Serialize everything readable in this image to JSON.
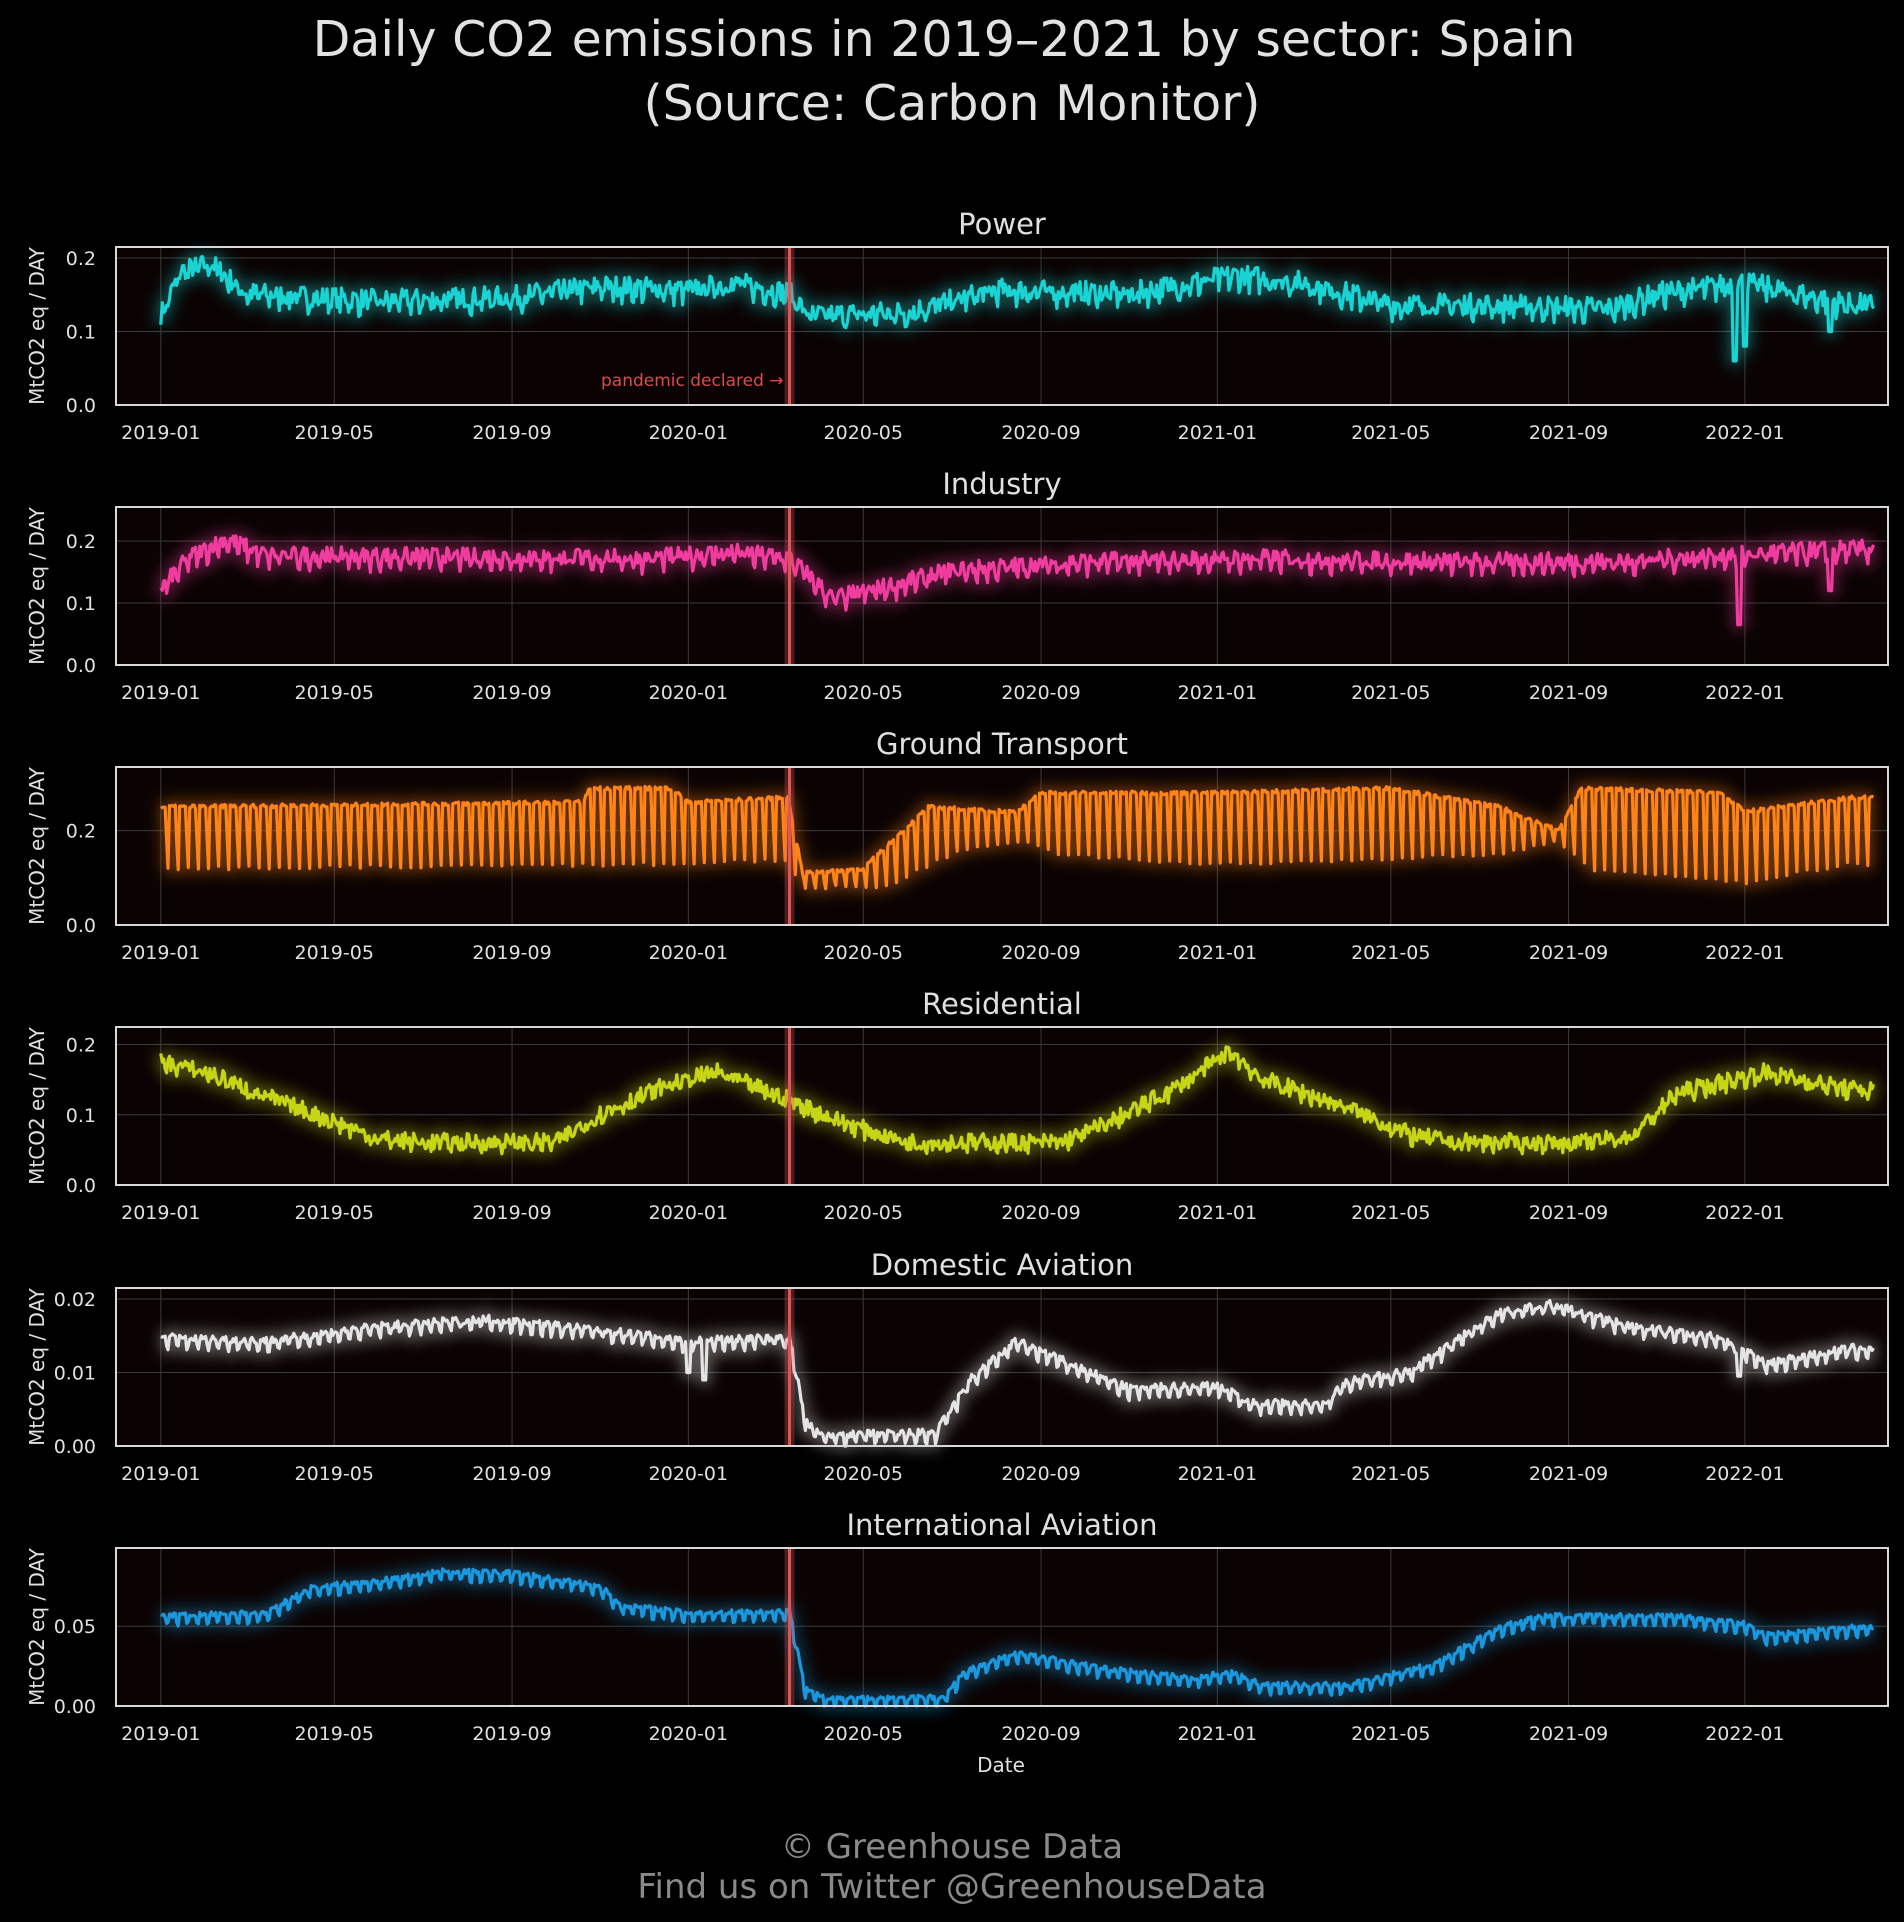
{
  "title_line1": "Daily CO2 emissions in 2019–2021 by sector: Spain",
  "title_line2": "(Source: Carbon Monitor)",
  "footer_line1": "© Greenhouse Data",
  "footer_line2": "Find us on Twitter @GreenhouseData",
  "colors": {
    "background": "#000000",
    "plot_background": "#0b0303",
    "grid": "#3a3a3a",
    "frame": "#d8d8d8",
    "pandemic_line": "#e05555"
  },
  "chart_data": {
    "type": "line",
    "x_axis": {
      "label": "Date",
      "range": [
        "2018-12-01",
        "2022-04-10"
      ],
      "ticks": [
        "2019-01",
        "2019-05",
        "2019-09",
        "2020-01",
        "2020-05",
        "2020-09",
        "2021-01",
        "2021-05",
        "2021-09",
        "2022-01"
      ]
    },
    "ylabel": "MtCO2 eq / DAY",
    "annotation": {
      "text": "pandemic declared →",
      "date": "2020-03-11"
    },
    "panels": [
      {
        "title": "Power",
        "color": "#1ad4d4",
        "ylim": [
          0,
          0.215
        ],
        "yticks": [
          "0.0",
          "0.1",
          "0.2"
        ],
        "ytick_values": [
          0,
          0.1,
          0.2
        ],
        "seasonal_weekly": false,
        "weekday_swing": 0.008,
        "noise": 0.014,
        "dips": [
          [
            "2021-12-25",
            0.06
          ],
          [
            "2022-01-01",
            0.08
          ],
          [
            "2022-03-01",
            0.1
          ]
        ],
        "trend": [
          [
            "2019-01-01",
            0.12
          ],
          [
            "2019-01-15",
            0.18
          ],
          [
            "2019-02-05",
            0.19
          ],
          [
            "2019-03-01",
            0.15
          ],
          [
            "2019-06-01",
            0.14
          ],
          [
            "2019-09-01",
            0.145
          ],
          [
            "2019-11-01",
            0.16
          ],
          [
            "2020-01-01",
            0.155
          ],
          [
            "2020-02-01",
            0.165
          ],
          [
            "2020-03-11",
            0.15
          ],
          [
            "2020-03-25",
            0.12
          ],
          [
            "2020-06-01",
            0.125
          ],
          [
            "2020-08-01",
            0.155
          ],
          [
            "2020-11-01",
            0.15
          ],
          [
            "2021-01-15",
            0.175
          ],
          [
            "2021-03-01",
            0.165
          ],
          [
            "2021-05-01",
            0.135
          ],
          [
            "2021-07-01",
            0.135
          ],
          [
            "2021-10-01",
            0.13
          ],
          [
            "2021-11-01",
            0.15
          ],
          [
            "2022-01-01",
            0.165
          ],
          [
            "2022-03-15",
            0.135
          ]
        ]
      },
      {
        "title": "Industry",
        "color": "#f03c9e",
        "ylim": [
          0,
          0.255
        ],
        "yticks": [
          "0.0",
          "0.1",
          "0.2"
        ],
        "ytick_values": [
          0,
          0.1,
          0.2
        ],
        "seasonal_weekly": false,
        "weekday_swing": 0.012,
        "noise": 0.012,
        "dips": [
          [
            "2021-12-28",
            0.065
          ],
          [
            "2022-03-01",
            0.12
          ]
        ],
        "trend": [
          [
            "2019-01-01",
            0.12
          ],
          [
            "2019-01-20",
            0.17
          ],
          [
            "2019-02-15",
            0.2
          ],
          [
            "2019-03-15",
            0.175
          ],
          [
            "2019-12-01",
            0.17
          ],
          [
            "2020-02-01",
            0.18
          ],
          [
            "2020-03-11",
            0.17
          ],
          [
            "2020-04-10",
            0.105
          ],
          [
            "2020-05-10",
            0.12
          ],
          [
            "2020-07-01",
            0.15
          ],
          [
            "2020-10-01",
            0.165
          ],
          [
            "2021-02-01",
            0.17
          ],
          [
            "2021-06-01",
            0.165
          ],
          [
            "2021-10-01",
            0.165
          ],
          [
            "2021-12-15",
            0.175
          ],
          [
            "2022-03-15",
            0.185
          ]
        ]
      },
      {
        "title": "Ground Transport",
        "color": "#ff8418",
        "ylim": [
          0,
          0.335
        ],
        "yticks": [
          "0.0",
          "0.2"
        ],
        "ytick_values": [
          0,
          0.2
        ],
        "seasonal_weekly": true,
        "weekday_swing": 0,
        "noise": 0.004,
        "dips": [],
        "trend_high": [
          [
            "2019-01-01",
            0.25
          ],
          [
            "2019-10-20",
            0.26
          ],
          [
            "2019-10-25",
            0.29
          ],
          [
            "2019-12-20",
            0.29
          ],
          [
            "2020-01-01",
            0.26
          ],
          [
            "2020-03-10",
            0.27
          ],
          [
            "2020-03-20",
            0.11
          ],
          [
            "2020-05-01",
            0.12
          ],
          [
            "2020-06-15",
            0.25
          ],
          [
            "2020-08-15",
            0.24
          ],
          [
            "2020-09-01",
            0.28
          ],
          [
            "2021-01-01",
            0.28
          ],
          [
            "2021-05-01",
            0.29
          ],
          [
            "2021-07-15",
            0.25
          ],
          [
            "2021-08-25",
            0.2
          ],
          [
            "2021-09-10",
            0.29
          ],
          [
            "2021-12-15",
            0.28
          ],
          [
            "2022-01-01",
            0.24
          ],
          [
            "2022-03-15",
            0.27
          ]
        ],
        "trend_low": [
          [
            "2019-01-01",
            0.12
          ],
          [
            "2019-12-20",
            0.13
          ],
          [
            "2020-03-10",
            0.14
          ],
          [
            "2020-03-20",
            0.08
          ],
          [
            "2020-05-15",
            0.08
          ],
          [
            "2020-07-01",
            0.15
          ],
          [
            "2020-08-15",
            0.18
          ],
          [
            "2020-09-15",
            0.15
          ],
          [
            "2021-01-01",
            0.13
          ],
          [
            "2021-07-15",
            0.15
          ],
          [
            "2021-08-25",
            0.18
          ],
          [
            "2021-09-15",
            0.12
          ],
          [
            "2022-01-01",
            0.09
          ],
          [
            "2022-03-15",
            0.13
          ]
        ]
      },
      {
        "title": "Residential",
        "color": "#c6d617",
        "ylim": [
          0,
          0.225
        ],
        "yticks": [
          "0.0",
          "0.1",
          "0.2"
        ],
        "ytick_values": [
          0,
          0.1,
          0.2
        ],
        "seasonal_weekly": false,
        "weekday_swing": 0.004,
        "noise": 0.012,
        "dips": [],
        "trend": [
          [
            "2019-01-01",
            0.175
          ],
          [
            "2019-02-01",
            0.16
          ],
          [
            "2019-03-15",
            0.125
          ],
          [
            "2019-05-01",
            0.09
          ],
          [
            "2019-06-01",
            0.065
          ],
          [
            "2019-07-01",
            0.06
          ],
          [
            "2019-10-01",
            0.06
          ],
          [
            "2019-11-01",
            0.1
          ],
          [
            "2019-12-15",
            0.14
          ],
          [
            "2020-01-20",
            0.16
          ],
          [
            "2020-03-11",
            0.12
          ],
          [
            "2020-04-15",
            0.09
          ],
          [
            "2020-06-01",
            0.06
          ],
          [
            "2020-09-15",
            0.06
          ],
          [
            "2020-10-20",
            0.09
          ],
          [
            "2020-12-01",
            0.135
          ],
          [
            "2021-01-10",
            0.19
          ],
          [
            "2021-02-01",
            0.15
          ],
          [
            "2021-04-01",
            0.11
          ],
          [
            "2021-05-15",
            0.07
          ],
          [
            "2021-06-15",
            0.06
          ],
          [
            "2021-09-15",
            0.06
          ],
          [
            "2021-10-15",
            0.07
          ],
          [
            "2021-11-15",
            0.13
          ],
          [
            "2022-01-15",
            0.16
          ],
          [
            "2022-03-15",
            0.135
          ]
        ]
      },
      {
        "title": "Domestic Aviation",
        "color": "#e4e4e4",
        "ylim": [
          0,
          0.0215
        ],
        "yticks": [
          "0.00",
          "0.01",
          "0.02"
        ],
        "ytick_values": [
          0,
          0.01,
          0.02
        ],
        "seasonal_weekly": false,
        "weekday_swing": 0.0009,
        "noise": 0.0005,
        "dips": [
          [
            "2020-01-01",
            0.01
          ],
          [
            "2020-01-12",
            0.009
          ],
          [
            "2021-12-28",
            0.0095
          ]
        ],
        "trend": [
          [
            "2019-01-01",
            0.0145
          ],
          [
            "2019-03-15",
            0.014
          ],
          [
            "2019-06-01",
            0.016
          ],
          [
            "2019-08-15",
            0.017
          ],
          [
            "2019-11-01",
            0.0155
          ],
          [
            "2020-01-01",
            0.014
          ],
          [
            "2020-03-11",
            0.0145
          ],
          [
            "2020-03-22",
            0.003
          ],
          [
            "2020-04-01",
            0.0012
          ],
          [
            "2020-06-20",
            0.0015
          ],
          [
            "2020-07-15",
            0.009
          ],
          [
            "2020-08-15",
            0.014
          ],
          [
            "2020-09-20",
            0.011
          ],
          [
            "2020-11-01",
            0.0075
          ],
          [
            "2021-01-01",
            0.008
          ],
          [
            "2021-01-25",
            0.0055
          ],
          [
            "2021-03-15",
            0.0055
          ],
          [
            "2021-04-01",
            0.0085
          ],
          [
            "2021-05-15",
            0.01
          ],
          [
            "2021-07-15",
            0.018
          ],
          [
            "2021-08-20",
            0.019
          ],
          [
            "2021-10-15",
            0.016
          ],
          [
            "2021-12-15",
            0.0145
          ],
          [
            "2022-01-15",
            0.011
          ],
          [
            "2022-03-15",
            0.013
          ]
        ]
      },
      {
        "title": "International Aviation",
        "color": "#1a97dd",
        "ylim": [
          0,
          0.099
        ],
        "yticks": [
          "0.00",
          "0.05"
        ],
        "ytick_values": [
          0,
          0.05
        ],
        "seasonal_weekly": false,
        "weekday_swing": 0.004,
        "noise": 0.0015,
        "dips": [],
        "trend": [
          [
            "2019-01-01",
            0.055
          ],
          [
            "2019-03-15",
            0.057
          ],
          [
            "2019-04-15",
            0.073
          ],
          [
            "2019-06-01",
            0.077
          ],
          [
            "2019-07-15",
            0.083
          ],
          [
            "2019-09-01",
            0.082
          ],
          [
            "2019-11-01",
            0.074
          ],
          [
            "2019-11-15",
            0.062
          ],
          [
            "2020-01-01",
            0.057
          ],
          [
            "2020-03-11",
            0.058
          ],
          [
            "2020-03-22",
            0.01
          ],
          [
            "2020-04-05",
            0.003
          ],
          [
            "2020-06-25",
            0.004
          ],
          [
            "2020-07-10",
            0.02
          ],
          [
            "2020-08-15",
            0.032
          ],
          [
            "2020-10-15",
            0.022
          ],
          [
            "2020-12-15",
            0.016
          ],
          [
            "2021-01-10",
            0.02
          ],
          [
            "2021-02-01",
            0.012
          ],
          [
            "2021-04-01",
            0.012
          ],
          [
            "2021-06-01",
            0.025
          ],
          [
            "2021-07-15",
            0.048
          ],
          [
            "2021-08-15",
            0.055
          ],
          [
            "2021-11-15",
            0.055
          ],
          [
            "2022-01-01",
            0.05
          ],
          [
            "2022-01-15",
            0.043
          ],
          [
            "2022-03-15",
            0.048
          ]
        ]
      }
    ]
  }
}
